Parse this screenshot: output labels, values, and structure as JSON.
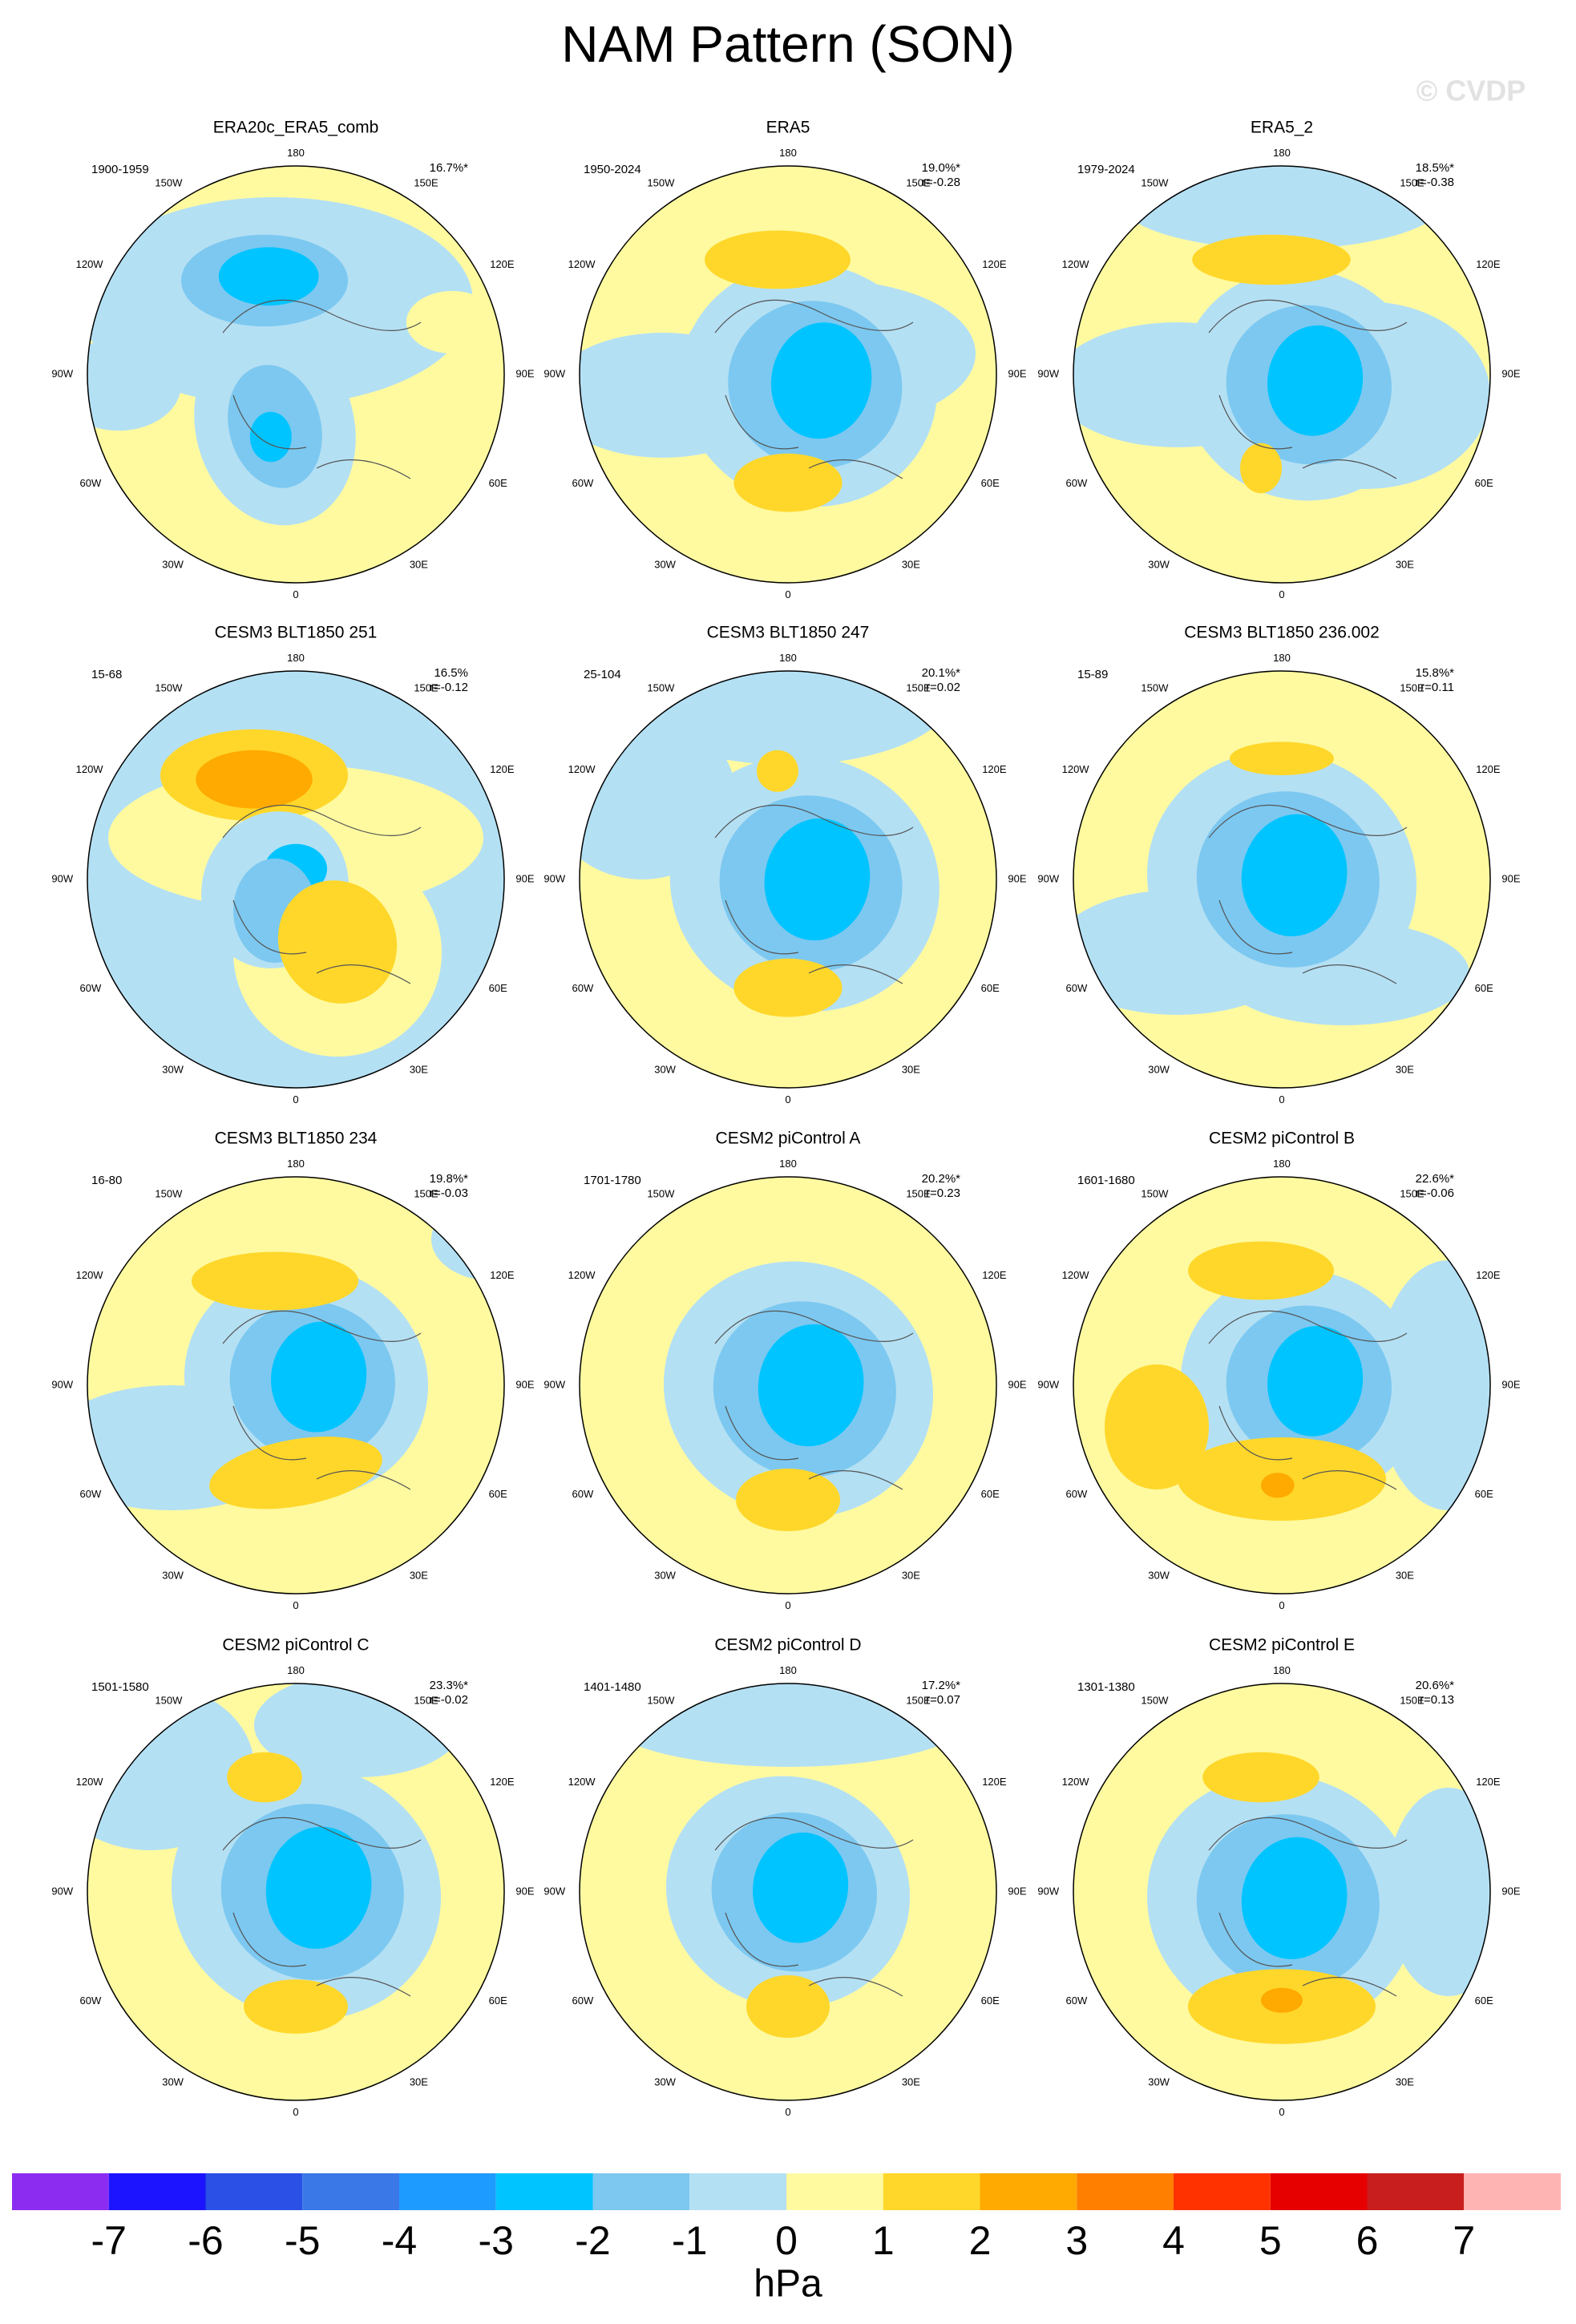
{
  "title": "NAM Pattern (SON)",
  "watermark": "© CVDP",
  "longitude_labels": [
    "180",
    "150W",
    "150E",
    "120W",
    "120E",
    "90W",
    "90E",
    "60W",
    "60E",
    "30W",
    "30E",
    "0"
  ],
  "panels": [
    {
      "title": "ERA20c_ERA5_comb",
      "period": "1900-1959",
      "pct": "16.7%*"
    },
    {
      "title": "ERA5",
      "period": "1950-2024",
      "pct": "19.0%*",
      "r": "r=-0.28"
    },
    {
      "title": "ERA5_2",
      "period": "1979-2024",
      "pct": "18.5%*",
      "r": "r=-0.38"
    },
    {
      "title": "CESM3 BLT1850 251",
      "period": "15-68",
      "pct": "16.5%",
      "r": "r=-0.12"
    },
    {
      "title": "CESM3 BLT1850 247",
      "period": "25-104",
      "pct": "20.1%*",
      "r": "r=0.02"
    },
    {
      "title": "CESM3 BLT1850 236.002",
      "period": "15-89",
      "pct": "15.8%*",
      "r": "r=0.11"
    },
    {
      "title": "CESM3 BLT1850 234",
      "period": "16-80",
      "pct": "19.8%*",
      "r": "r=-0.03"
    },
    {
      "title": "CESM2 piControl A",
      "period": "1701-1780",
      "pct": "20.2%*",
      "r": "r=0.23"
    },
    {
      "title": "CESM2 piControl B",
      "period": "1601-1680",
      "pct": "22.6%*",
      "r": "r=-0.06"
    },
    {
      "title": "CESM2 piControl C",
      "period": "1501-1580",
      "pct": "23.3%*",
      "r": "r=-0.02"
    },
    {
      "title": "CESM2 piControl D",
      "period": "1401-1480",
      "pct": "17.2%*",
      "r": "r=0.07"
    },
    {
      "title": "CESM2 piControl E",
      "period": "1301-1380",
      "pct": "20.6%*",
      "r": "r=0.13"
    }
  ],
  "colorbar": {
    "colors": [
      "#8c2cf0",
      "#1c14ff",
      "#2a50e6",
      "#3a78e8",
      "#1e9bff",
      "#00c4ff",
      "#7cc8f0",
      "#b4e0f4",
      "#fffaa0",
      "#ffd72a",
      "#ffaa00",
      "#ff7f00",
      "#ff3200",
      "#e60000",
      "#c81e1e",
      "#ffb4b4"
    ],
    "ticks": [
      -7,
      -6,
      -5,
      -4,
      -3,
      -2,
      -1,
      0,
      1,
      2,
      3,
      4,
      5,
      6,
      7
    ],
    "label": "hPa"
  }
}
